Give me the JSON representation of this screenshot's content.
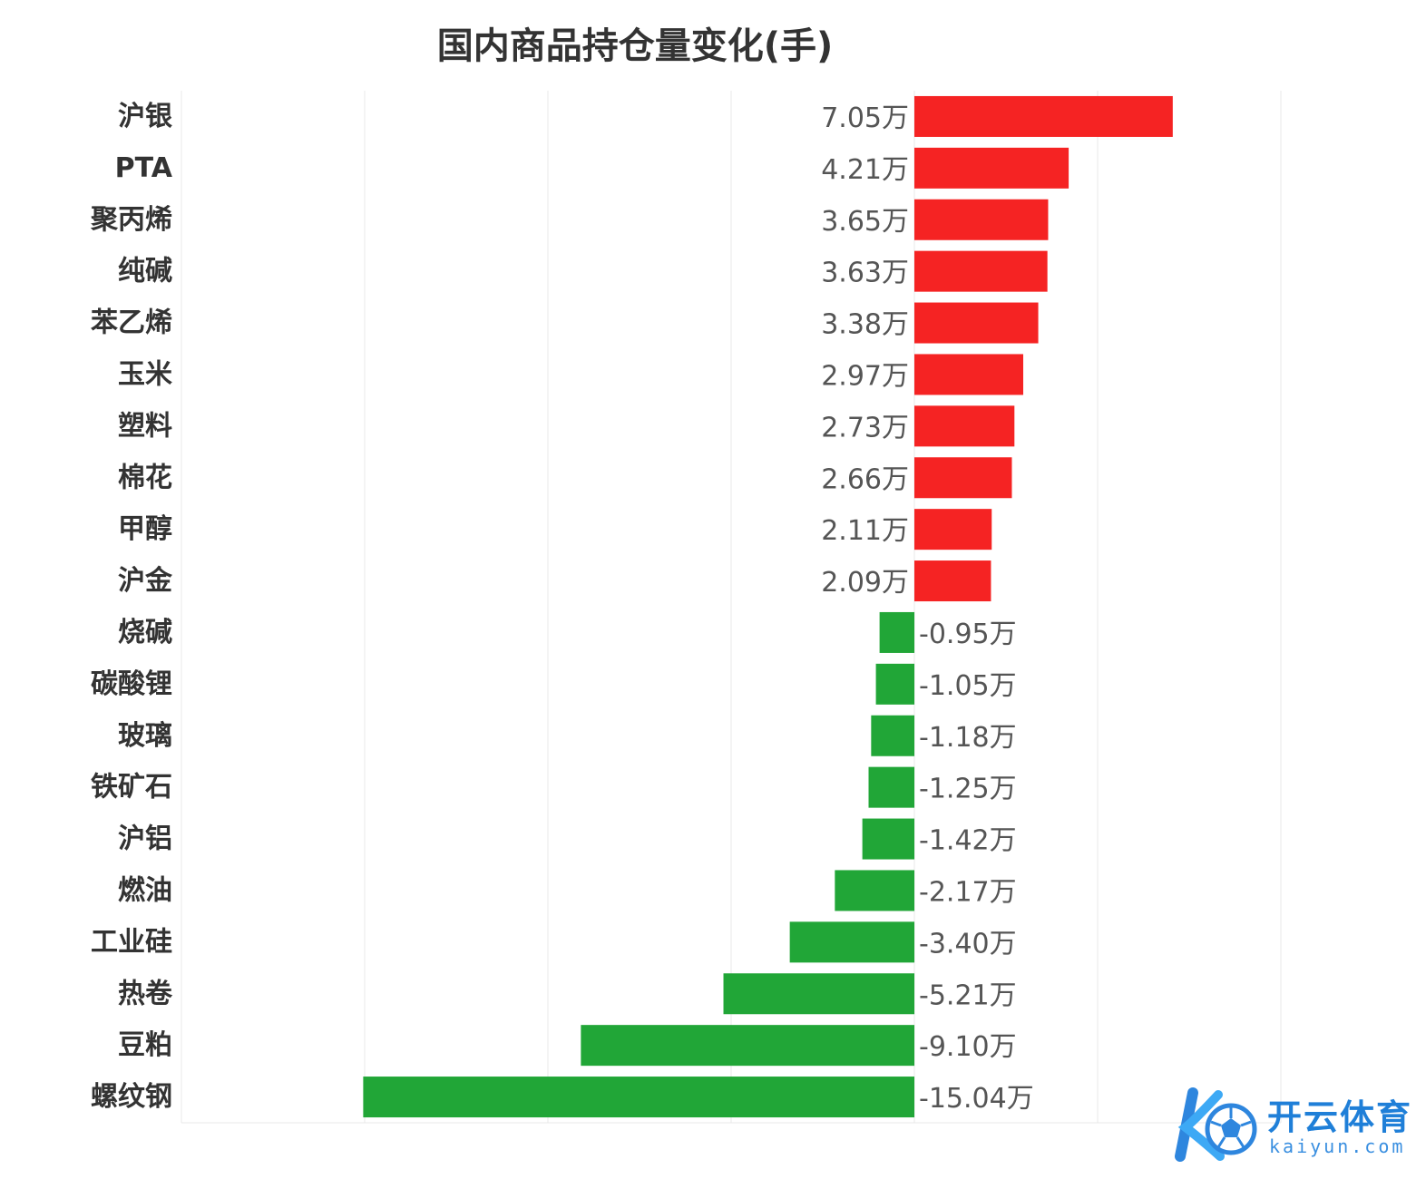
{
  "chart_data": {
    "type": "bar",
    "orientation": "horizontal",
    "title": "国内商品持仓量变化(手)",
    "categories": [
      "沪银",
      "PTA",
      "聚丙烯",
      "纯碱",
      "苯乙烯",
      "玉米",
      "塑料",
      "棉花",
      "甲醇",
      "沪金",
      "烧碱",
      "碳酸锂",
      "玻璃",
      "铁矿石",
      "沪铝",
      "燃油",
      "工业硅",
      "热卷",
      "豆粕",
      "螺纹钢"
    ],
    "values": [
      70500,
      42100,
      36500,
      36300,
      33800,
      29700,
      27300,
      26600,
      21100,
      20900,
      -9500,
      -10500,
      -11800,
      -12500,
      -14200,
      -21700,
      -34000,
      -52100,
      -91000,
      -150400
    ],
    "labels": [
      "7.05万",
      "4.21万",
      "3.65万",
      "3.63万",
      "3.38万",
      "2.97万",
      "2.73万",
      "2.66万",
      "2.11万",
      "2.09万",
      "-0.95万",
      "-1.05万",
      "-1.18万",
      "-1.25万",
      "-1.42万",
      "-2.17万",
      "-3.40万",
      "-5.21万",
      "-9.10万",
      "-15.04万"
    ],
    "xlim": [
      -200000,
      100000
    ],
    "grid": true,
    "colors": {
      "positive": "#f52323",
      "negative": "#21a637",
      "grid": "#e8e8e8"
    }
  },
  "watermark": {
    "brand_cn": "开云体育",
    "brand_en": "kaiyun.com"
  }
}
